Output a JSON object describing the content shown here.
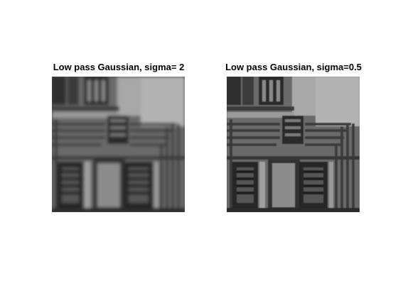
{
  "figure": {
    "panels": [
      {
        "title": "Low pass Gaussian, sigma= 2",
        "image": "blurred-circuit-image"
      },
      {
        "title": "Low pass Gaussian, sigma=0.5",
        "image": "sharper-circuit-image"
      }
    ]
  }
}
